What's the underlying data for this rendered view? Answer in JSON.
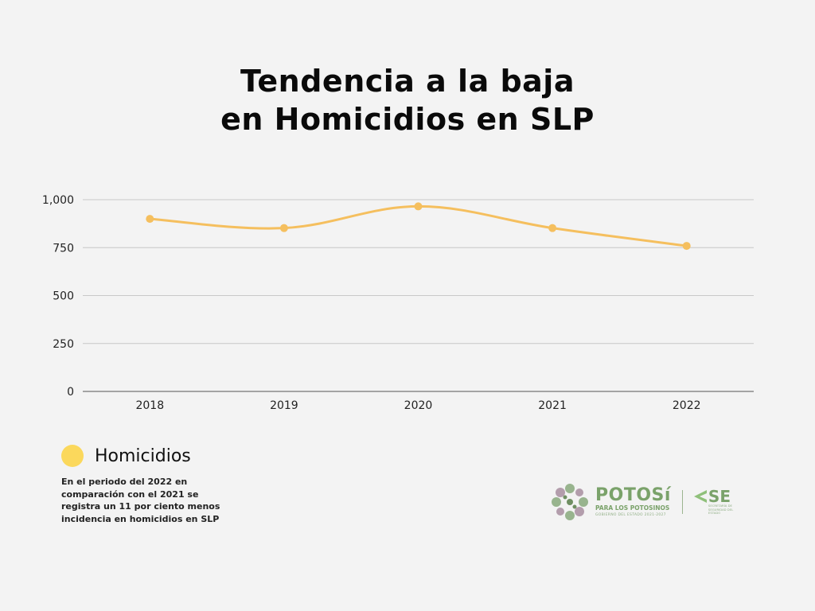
{
  "title": {
    "line1": "Tendencia a la baja",
    "line2": "en Homicidios en SLP"
  },
  "chart_data": {
    "type": "line",
    "title": "Tendencia a la baja en Homicidios en SLP",
    "xlabel": "",
    "ylabel": "",
    "categories": [
      "2018",
      "2019",
      "2020",
      "2021",
      "2022"
    ],
    "series": [
      {
        "name": "Homicidios",
        "color": "#f5bf5e",
        "values": [
          900,
          852,
          965,
          852,
          759
        ]
      }
    ],
    "ylim": [
      0,
      1000
    ],
    "yticks": [
      0,
      250,
      500,
      750,
      1000
    ],
    "ytick_labels": [
      "0",
      "250",
      "500",
      "750",
      "1,000"
    ],
    "grid": true,
    "smooth": true,
    "legend_position": "bottom-left"
  },
  "legend": {
    "label": "Homicidios",
    "color": "#fbd85c"
  },
  "note": "En el periodo del 2022 en comparación con el 2021 se registra un 11 por ciento menos incidencia en homicidios en SLP",
  "logos": {
    "potosi": {
      "name": "POTOSí",
      "subtitle": "PARA LOS POTOSINOS",
      "government": "GOBIERNO DEL ESTADO 2021-2027"
    },
    "se": {
      "name": "SE",
      "subtitle": "SECRETARÍA DE SEGURIDAD DEL ESTADO"
    }
  },
  "colors": {
    "background": "#f3f3f3",
    "line": "#f5bf5e",
    "grid": "#c8c8c8",
    "axis": "#555555",
    "brand_green": "#7aa26a"
  }
}
